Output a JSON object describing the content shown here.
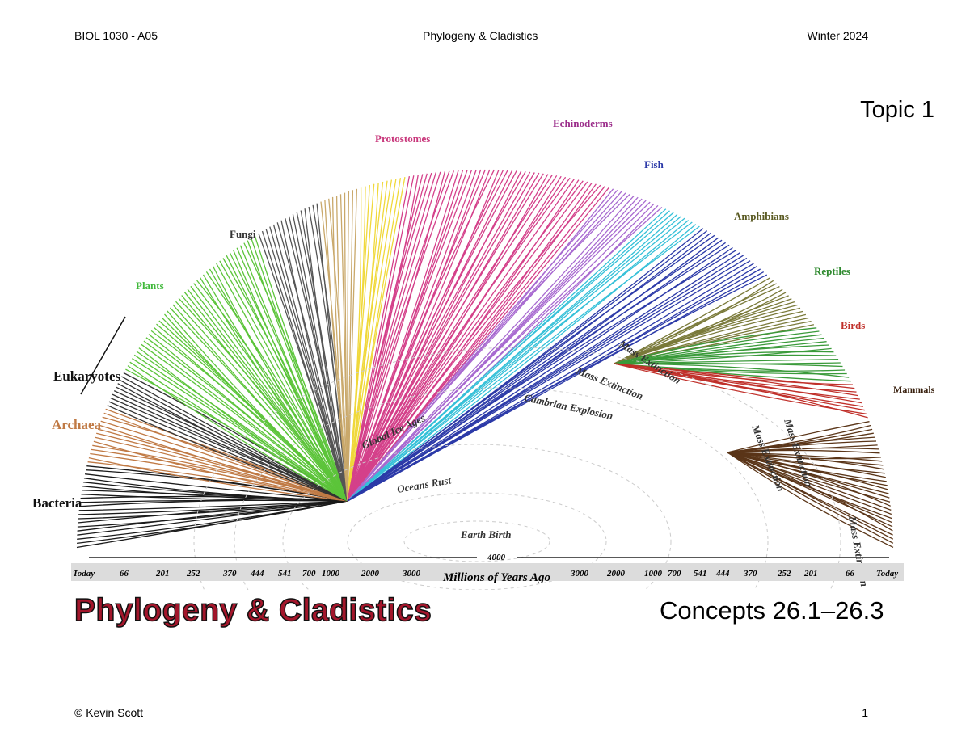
{
  "header": {
    "course": "BIOL 1030 - A05",
    "title": "Phylogeny & Cladistics",
    "term": "Winter 2024"
  },
  "topic": "Topic 1",
  "figure": {
    "groups": [
      {
        "name": "Bacteria",
        "color": "#1a1a1a"
      },
      {
        "name": "Archaea",
        "color": "#c07a45"
      },
      {
        "name": "Eukaryotes",
        "color": "#222222"
      },
      {
        "name": "Plants",
        "color": "#5cc43a"
      },
      {
        "name": "Fungi",
        "color": "#444444"
      },
      {
        "name": "Protostomes",
        "color": "#c8357a"
      },
      {
        "name": "Echinoderms",
        "color": "#9b2d8a"
      },
      {
        "name": "Fish",
        "color": "#2c3aa8"
      },
      {
        "name": "Amphibians",
        "color": "#6b6a2a"
      },
      {
        "name": "Reptiles",
        "color": "#2f8a2f"
      },
      {
        "name": "Birds",
        "color": "#c0302a"
      },
      {
        "name": "Mammals",
        "color": "#5a3518"
      }
    ],
    "events": [
      "Earth Birth",
      "Oceans Rust",
      "Global Ice Ages",
      "Cambrian Explosion",
      "Mass Extinction",
      "Mass Extinction",
      "Mass Extinction",
      "Mass Extinction",
      "Mass Extinction"
    ],
    "timeline": {
      "center_value": "4000",
      "axis_label": "Millions of Years Ago",
      "left_ticks": [
        "Today",
        "66",
        "201",
        "252",
        "370",
        "444",
        "541",
        "700",
        "1000",
        "2000",
        "3000"
      ],
      "right_ticks": [
        "3000",
        "2000",
        "1000",
        "700",
        "541",
        "444",
        "370",
        "252",
        "201",
        "66",
        "Today"
      ]
    }
  },
  "main_title": "Phylogeny & Cladistics",
  "concepts": "Concepts 26.1–26.3",
  "footer": {
    "copyright": "© Kevin Scott",
    "page": "1"
  }
}
